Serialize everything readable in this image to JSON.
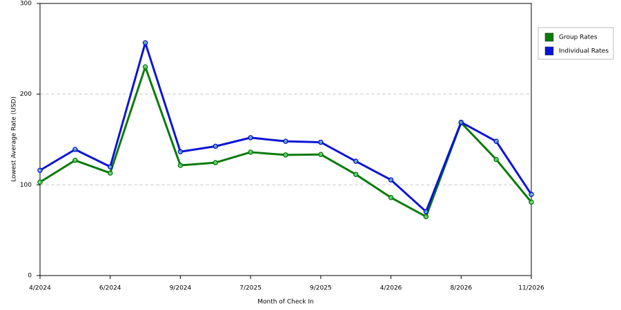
{
  "chart_data": {
    "type": "line",
    "x_label": "Month of Check In",
    "y_label": "Lowest Average Rate (USD)",
    "categories": [
      "4/2024",
      null,
      "6/2024",
      null,
      "9/2024",
      null,
      "7/2025",
      null,
      "9/2025",
      null,
      "4/2026",
      null,
      "8/2026",
      null,
      "11/2026"
    ],
    "series": [
      {
        "name": "Group Rates",
        "color": "#0a7a0a",
        "values": [
          103,
          127,
          113,
          230,
          121.5,
          124.5,
          136,
          133,
          133.5,
          111.5,
          86,
          65,
          168.5,
          128,
          81
        ]
      },
      {
        "name": "Individual Rates",
        "color": "#0a14d6",
        "values": [
          116,
          139,
          120,
          256.5,
          136.5,
          142.5,
          152,
          148,
          147,
          126,
          105.5,
          70.5,
          169,
          148,
          89.5
        ]
      }
    ],
    "ylim": [
      0,
      300
    ],
    "yticks": [
      0,
      100,
      200,
      300
    ],
    "grid": true
  }
}
